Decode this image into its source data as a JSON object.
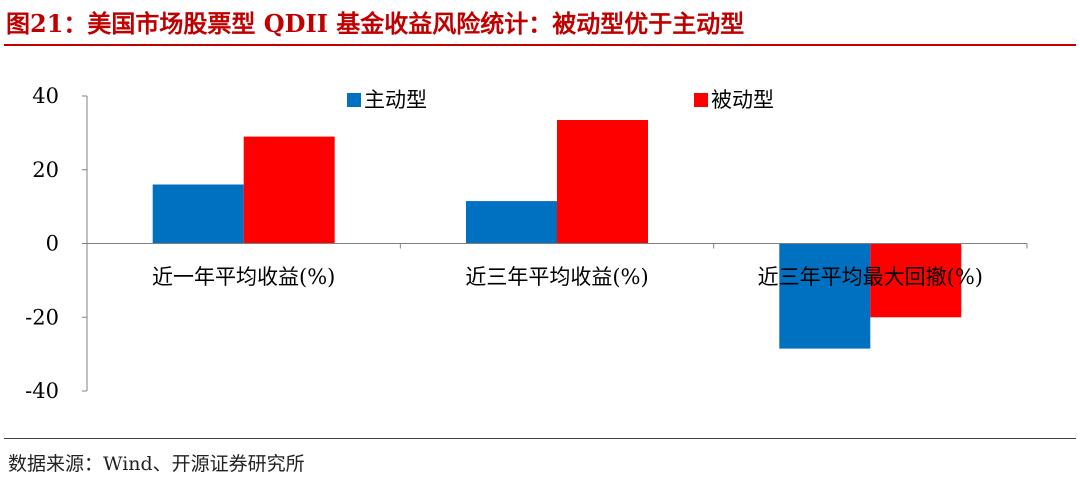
{
  "header": {
    "title": "图21：美国市场股票型 QDII 基金收益风险统计：被动型优于主动型"
  },
  "footer": {
    "source": "数据来源：Wind、开源证券研究所"
  },
  "colors": {
    "title": "#c00000",
    "active": "#0070c0",
    "passive": "#ff0000",
    "axis": "#808080"
  },
  "chart_data": {
    "type": "bar",
    "categories": [
      "近一年平均收益(%)",
      "近三年平均收益(%)",
      "近三年平均最大回撤(%)"
    ],
    "series": [
      {
        "name": "主动型",
        "color": "#0070c0",
        "values": [
          16,
          11.5,
          -28.5
        ]
      },
      {
        "name": "被动型",
        "color": "#ff0000",
        "values": [
          29,
          33.5,
          -20
        ]
      }
    ],
    "ylim": [
      -40,
      40
    ],
    "yticks": [
      -40,
      -20,
      0,
      20,
      40
    ],
    "grid": false,
    "legend": "top",
    "title": "",
    "xlabel": "",
    "ylabel": ""
  }
}
